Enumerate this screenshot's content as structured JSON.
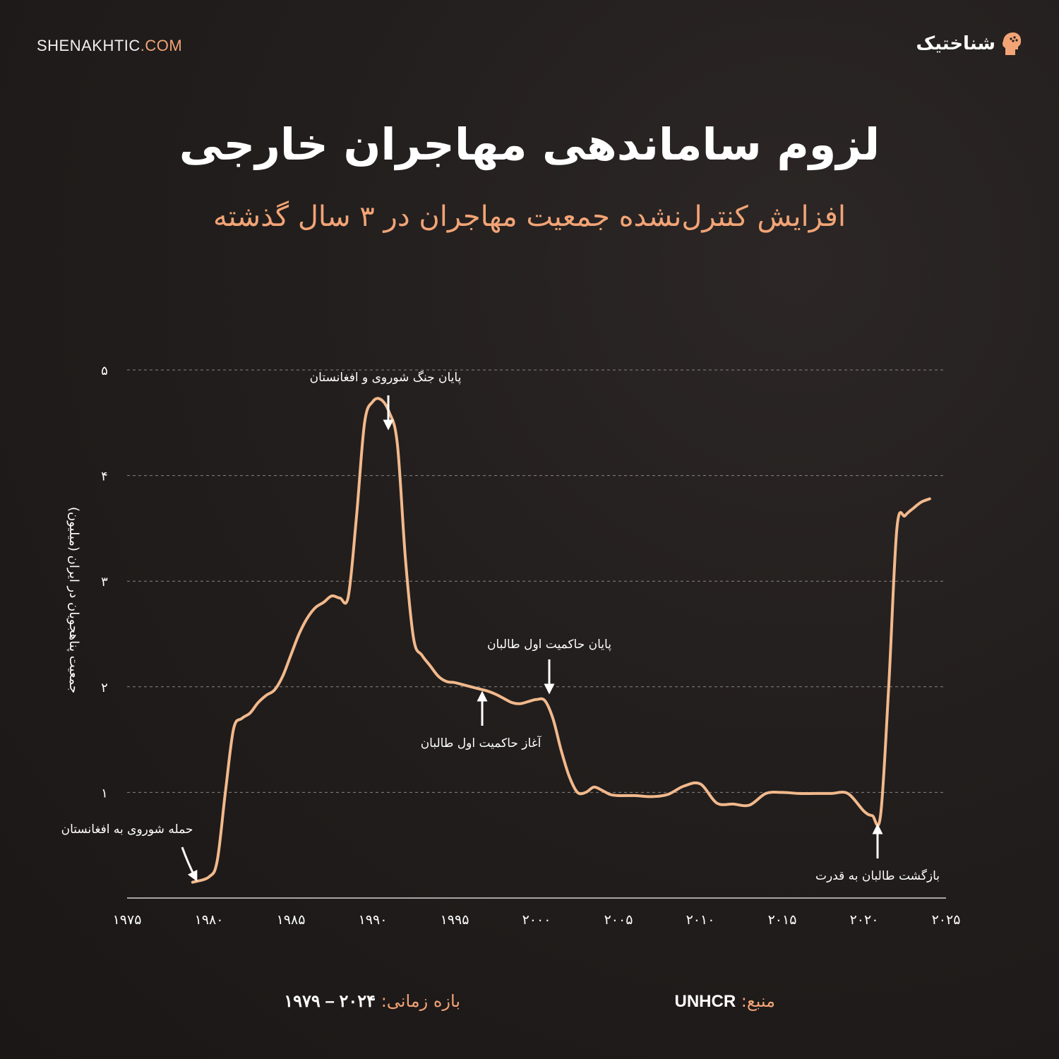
{
  "header": {
    "site_name": "SHENAKHTIC",
    "site_domain": ".COM",
    "brand": "شناختیک"
  },
  "title": "لزوم ساماندهی مهاجران خارجی",
  "subtitle": "افزایش کنترل‌نشده جمعیت مهاجران در ۳ سال گذشته",
  "colors": {
    "accent": "#f2a476",
    "line": "#f2b98c",
    "background": "#221e1d",
    "text": "#ffffff",
    "grid": "#8a8482"
  },
  "footer": {
    "source_label": "منبع:",
    "source_value": "UNHCR",
    "period_label": "بازه زمانی:",
    "period_value": "۲۰۲۴ – ۱۹۷۹"
  },
  "chart_data": {
    "type": "line",
    "ylabel": "جمعیت پناهجویان در ایران (میلیون)",
    "xlabel": "",
    "xlim": [
      1975,
      2025
    ],
    "ylim": [
      0,
      5
    ],
    "grid": true,
    "x_ticks": [
      1975,
      1980,
      1985,
      1990,
      1995,
      2000,
      2005,
      2010,
      2015,
      2020,
      2025
    ],
    "x_tick_labels": [
      "۱۹۷۵",
      "۱۹۸۰",
      "۱۹۸۵",
      "۱۹۹۰",
      "۱۹۹۵",
      "۲۰۰۰",
      "۲۰۰۵",
      "۲۰۱۰",
      "۲۰۱۵",
      "۲۰۲۰",
      "۲۰۲۵"
    ],
    "y_ticks": [
      1,
      2,
      3,
      4,
      5
    ],
    "y_tick_labels": [
      "۱",
      "۲",
      "۳",
      "۴",
      "۵"
    ],
    "series": [
      {
        "x": [
          1979,
          1980,
          1980.5,
          1981,
          1981.5,
          1982,
          1982.5,
          1983,
          1983.5,
          1984,
          1984.5,
          1985,
          1985.5,
          1986,
          1986.5,
          1987,
          1987.5,
          1988,
          1988.5,
          1989,
          1989.5,
          1990,
          1990.5,
          1991,
          1991.5,
          1992,
          1992.5,
          1993,
          1993.5,
          1994,
          1994.5,
          1995,
          1995.5,
          1996,
          1996.5,
          1997,
          1997.5,
          1998,
          1998.5,
          1999,
          1999.5,
          2000,
          2000.5,
          2001,
          2001.5,
          2002,
          2002.5,
          2003,
          2003.5,
          2004,
          2004.5,
          2005,
          2006,
          2007,
          2008,
          2009,
          2010,
          2011,
          2012,
          2013,
          2014,
          2015,
          2016,
          2017,
          2018,
          2019,
          2020,
          2020.5,
          2021,
          2021.5,
          2022,
          2022.5,
          2023,
          2023.5,
          2024
        ],
        "values": [
          0.15,
          0.2,
          0.35,
          1.0,
          1.6,
          1.7,
          1.75,
          1.85,
          1.92,
          1.97,
          2.1,
          2.3,
          2.5,
          2.65,
          2.75,
          2.8,
          2.86,
          2.84,
          2.85,
          3.6,
          4.5,
          4.7,
          4.72,
          4.6,
          4.3,
          3.2,
          2.45,
          2.3,
          2.2,
          2.1,
          2.05,
          2.04,
          2.02,
          2.0,
          1.98,
          1.96,
          1.93,
          1.89,
          1.85,
          1.84,
          1.86,
          1.88,
          1.87,
          1.7,
          1.4,
          1.15,
          1.0,
          1.0,
          1.05,
          1.02,
          0.98,
          0.97,
          0.97,
          0.96,
          0.98,
          1.06,
          1.08,
          0.9,
          0.89,
          0.88,
          0.99,
          1.0,
          0.99,
          0.99,
          0.99,
          0.99,
          0.82,
          0.78,
          0.78,
          2.0,
          3.5,
          3.62,
          3.69,
          3.75,
          3.78
        ]
      }
    ],
    "annotations": [
      {
        "text": "حمله شوروی به افغانستان",
        "x": 1979,
        "y": 0.15,
        "arrow": "down"
      },
      {
        "text": "پایان جنگ شوروی و افغانستان",
        "x": 1990.7,
        "y": 4.72,
        "arrow": "down"
      },
      {
        "text": "آغاز حاکمیت اول طالبان",
        "x": 1996.5,
        "y": 2.0,
        "arrow": "up"
      },
      {
        "text": "پایان حاکمیت اول طالبان",
        "x": 2001,
        "y": 1.9,
        "arrow": "down"
      },
      {
        "text": "بازگشت طالبان به قدرت",
        "x": 2021,
        "y": 0.78,
        "arrow": "up"
      }
    ]
  }
}
